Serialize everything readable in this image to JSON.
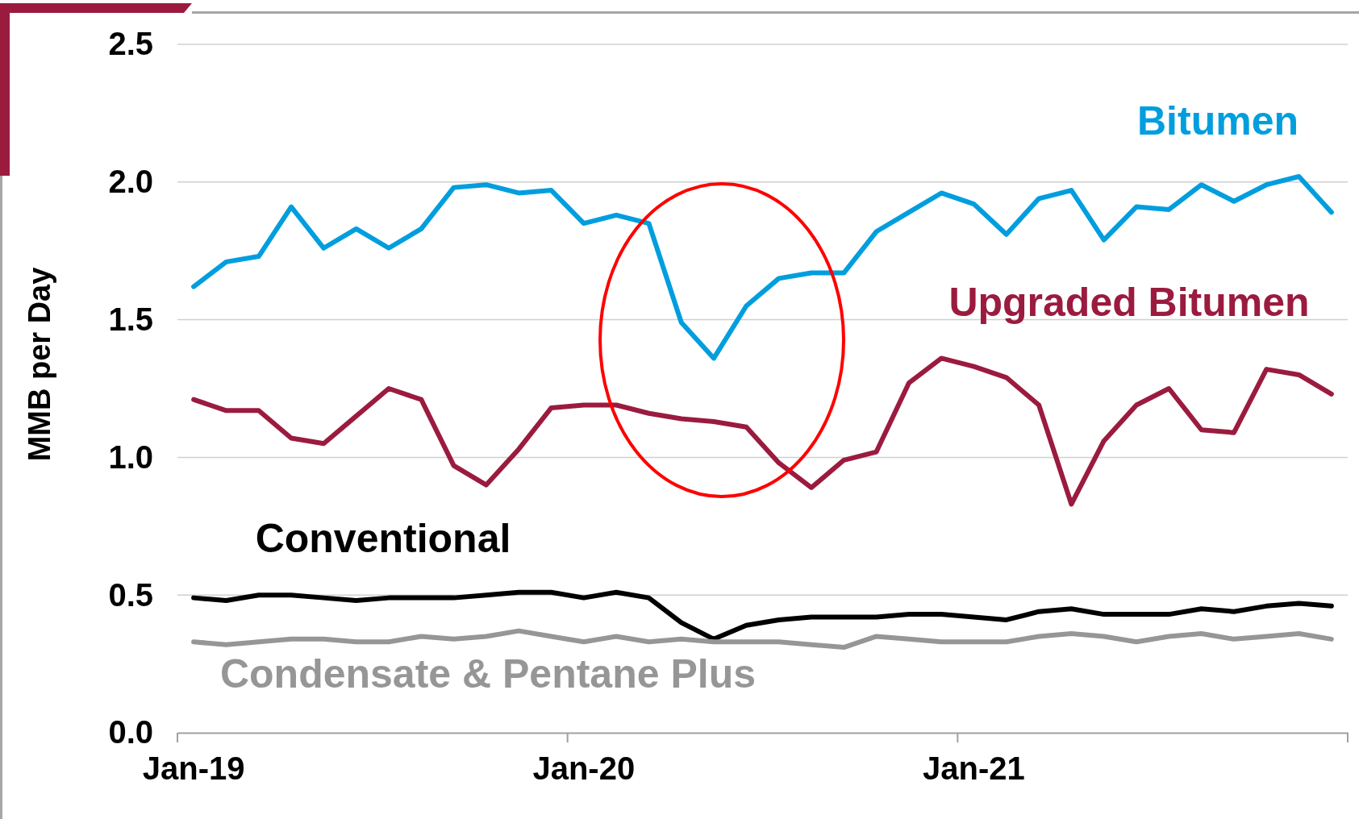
{
  "chart_data": {
    "type": "line",
    "ylabel": "MMB per Day",
    "categories": [
      "Jan-19",
      null,
      null,
      null,
      null,
      null,
      null,
      null,
      null,
      null,
      null,
      null,
      "Jan-20",
      null,
      null,
      null,
      null,
      null,
      null,
      null,
      null,
      null,
      null,
      null,
      "Jan-21",
      null,
      null,
      null,
      null,
      null,
      null,
      null,
      null,
      null,
      null,
      null
    ],
    "ylim": [
      0,
      2.5
    ],
    "yticks": [
      {
        "value": 0,
        "label": "0.0"
      },
      {
        "value": 0.5,
        "label": "0.5"
      },
      {
        "value": 1,
        "label": "1.0"
      },
      {
        "value": 1.5,
        "label": "1.5"
      },
      {
        "value": 2,
        "label": "2.0"
      },
      {
        "value": 2.5,
        "label": "2.5"
      }
    ],
    "grid": "y",
    "legend": false,
    "line_style": "solid",
    "marker": "none",
    "series": [
      {
        "name": "Bitumen",
        "color": "#009ede",
        "values": [
          1.62,
          1.71,
          1.73,
          1.91,
          1.76,
          1.83,
          1.76,
          1.83,
          1.98,
          1.99,
          1.96,
          1.97,
          1.85,
          1.88,
          1.85,
          1.49,
          1.36,
          1.55,
          1.65,
          1.67,
          1.67,
          1.82,
          1.89,
          1.96,
          1.92,
          1.81,
          1.94,
          1.97,
          1.79,
          1.91,
          1.9,
          1.99,
          1.93,
          1.99,
          2.02,
          1.89
        ]
      },
      {
        "name": "Upgraded Bitumen",
        "color": "#9b1b3f",
        "values": [
          1.21,
          1.17,
          1.17,
          1.07,
          1.05,
          1.15,
          1.25,
          1.21,
          0.97,
          0.9,
          1.03,
          1.18,
          1.19,
          1.19,
          1.16,
          1.14,
          1.13,
          1.11,
          0.98,
          0.89,
          0.99,
          1.02,
          1.27,
          1.36,
          1.33,
          1.29,
          1.19,
          0.83,
          1.06,
          1.19,
          1.25,
          1.1,
          1.09,
          1.32,
          1.3,
          1.23
        ]
      },
      {
        "name": "Conventional",
        "color": "#000000",
        "values": [
          0.49,
          0.48,
          0.5,
          0.5,
          0.49,
          0.48,
          0.49,
          0.49,
          0.49,
          0.5,
          0.51,
          0.51,
          0.49,
          0.51,
          0.49,
          0.4,
          0.34,
          0.39,
          0.41,
          0.42,
          0.42,
          0.42,
          0.43,
          0.43,
          0.42,
          0.41,
          0.44,
          0.45,
          0.43,
          0.43,
          0.43,
          0.45,
          0.44,
          0.46,
          0.47,
          0.46
        ]
      },
      {
        "name": "Condensate & Pentane Plus",
        "color": "#969696",
        "values": [
          0.33,
          0.32,
          0.33,
          0.34,
          0.34,
          0.33,
          0.33,
          0.35,
          0.34,
          0.35,
          0.37,
          0.35,
          0.33,
          0.35,
          0.33,
          0.34,
          0.33,
          0.33,
          0.33,
          0.32,
          0.31,
          0.35,
          0.34,
          0.33,
          0.33,
          0.33,
          0.35,
          0.36,
          0.35,
          0.33,
          0.35,
          0.36,
          0.34,
          0.35,
          0.36,
          0.34
        ]
      }
    ]
  }
}
